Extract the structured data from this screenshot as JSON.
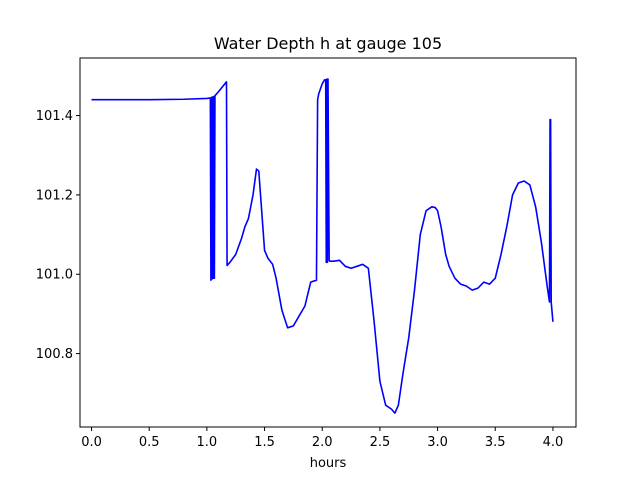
{
  "chart_data": {
    "type": "line",
    "title": "Water Depth h at gauge 105",
    "xlabel": "hours",
    "ylabel": "",
    "xlim": [
      -0.1,
      4.2
    ],
    "ylim": [
      100.615,
      101.545
    ],
    "xticks": [
      {
        "value": 0.0,
        "label": "0.0"
      },
      {
        "value": 0.5,
        "label": "0.5"
      },
      {
        "value": 1.0,
        "label": "1.0"
      },
      {
        "value": 1.5,
        "label": "1.5"
      },
      {
        "value": 2.0,
        "label": "2.0"
      },
      {
        "value": 2.5,
        "label": "2.5"
      },
      {
        "value": 3.0,
        "label": "3.0"
      },
      {
        "value": 3.5,
        "label": "3.5"
      },
      {
        "value": 4.0,
        "label": "4.0"
      }
    ],
    "yticks": [
      {
        "value": 100.8,
        "label": "100.8"
      },
      {
        "value": 101.0,
        "label": "101.0"
      },
      {
        "value": 101.2,
        "label": "101.2"
      },
      {
        "value": 101.4,
        "label": "101.4"
      }
    ],
    "grid": false,
    "series": [
      {
        "name": "",
        "color": "#0000ff",
        "x": [
          0.0,
          0.5,
          0.8,
          1.0,
          1.02,
          1.03,
          1.035,
          1.04,
          1.045,
          1.05,
          1.055,
          1.06,
          1.065,
          1.07,
          1.1,
          1.17,
          1.175,
          1.2,
          1.25,
          1.3,
          1.33,
          1.36,
          1.4,
          1.43,
          1.45,
          1.47,
          1.5,
          1.53,
          1.57,
          1.6,
          1.65,
          1.7,
          1.75,
          1.8,
          1.85,
          1.9,
          1.95,
          1.96,
          1.97,
          2.0,
          2.02,
          2.03,
          2.035,
          2.04,
          2.045,
          2.05,
          2.06,
          2.065,
          2.1,
          2.15,
          2.2,
          2.25,
          2.3,
          2.35,
          2.4,
          2.45,
          2.5,
          2.55,
          2.6,
          2.63,
          2.66,
          2.7,
          2.75,
          2.8,
          2.85,
          2.9,
          2.95,
          2.98,
          3.0,
          3.03,
          3.07,
          3.1,
          3.15,
          3.2,
          3.25,
          3.3,
          3.35,
          3.4,
          3.45,
          3.5,
          3.55,
          3.6,
          3.65,
          3.7,
          3.75,
          3.8,
          3.85,
          3.9,
          3.95,
          3.97,
          3.975,
          3.98,
          3.985,
          4.0
        ],
        "values": [
          101.44,
          101.44,
          101.441,
          101.443,
          101.444,
          101.444,
          100.985,
          101.446,
          100.988,
          101.447,
          100.99,
          101.448,
          100.99,
          101.45,
          101.46,
          101.485,
          101.022,
          101.03,
          101.05,
          101.09,
          101.12,
          101.14,
          101.2,
          101.265,
          101.26,
          101.18,
          101.06,
          101.04,
          101.025,
          100.99,
          100.91,
          100.865,
          100.87,
          100.895,
          100.92,
          100.98,
          100.985,
          101.44,
          101.455,
          101.48,
          101.49,
          101.49,
          101.03,
          101.492,
          101.03,
          101.492,
          101.035,
          101.033,
          101.033,
          101.035,
          101.02,
          101.015,
          101.02,
          101.025,
          101.015,
          100.88,
          100.73,
          100.67,
          100.66,
          100.65,
          100.67,
          100.75,
          100.84,
          100.96,
          101.1,
          101.16,
          101.17,
          101.168,
          101.16,
          101.12,
          101.05,
          101.02,
          100.99,
          100.975,
          100.97,
          100.96,
          100.965,
          100.98,
          100.975,
          100.99,
          101.05,
          101.12,
          101.2,
          101.23,
          101.235,
          101.225,
          101.17,
          101.08,
          100.97,
          100.93,
          101.39,
          101.39,
          100.93,
          100.88
        ]
      }
    ]
  }
}
